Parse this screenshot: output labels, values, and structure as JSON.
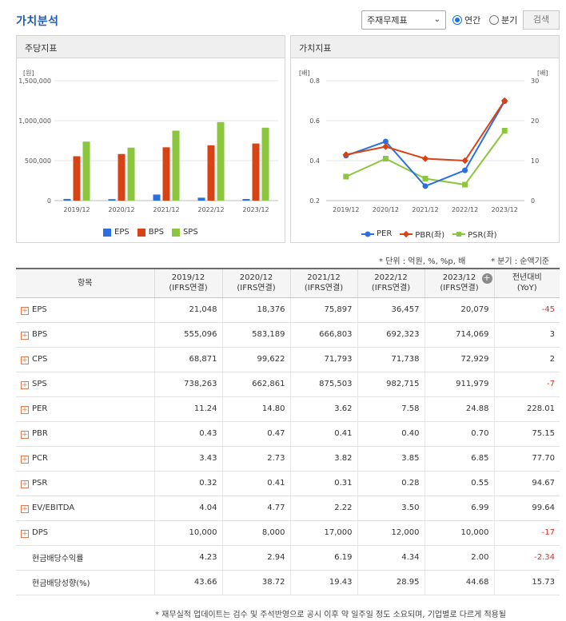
{
  "header": {
    "title": "가치분석",
    "select_value": "주재무제표",
    "radio_annual": "연간",
    "radio_quarter": "분기",
    "search_label": "검색"
  },
  "left_panel": {
    "title": "주당지표"
  },
  "right_panel": {
    "title": "가치지표"
  },
  "notes": {
    "unit": "* 단위 : 억원, %, %p, 배",
    "quarter": "* 분기 : 순액기준",
    "footer": "* 재무실적 업데이트는 검수 및 주석반영으로 공시 이후 약 일주일 정도 소요되며, 기업별로 다르게 적용될"
  },
  "colors": {
    "eps": "#2b6fe0",
    "bps": "#d84315",
    "sps": "#8cc63f",
    "per": "#2b6fe0",
    "pbr": "#d84315",
    "psr": "#8cc63f"
  },
  "chart_data": [
    {
      "type": "bar",
      "title": "주당지표",
      "ylabel": "[원]",
      "categories": [
        "2019/12",
        "2020/12",
        "2021/12",
        "2022/12",
        "2023/12"
      ],
      "yticks": [
        "1,500,000",
        "1,000,000",
        "500,000",
        "0"
      ],
      "ylim": [
        0,
        1500000
      ],
      "series": [
        {
          "name": "EPS",
          "values": [
            21048,
            18376,
            75897,
            36457,
            20079
          ]
        },
        {
          "name": "BPS",
          "values": [
            555096,
            583189,
            666803,
            692323,
            714069
          ]
        },
        {
          "name": "SPS",
          "values": [
            738263,
            662861,
            875503,
            982715,
            911979
          ]
        }
      ],
      "legend_position": "bottom"
    },
    {
      "type": "line",
      "title": "가치지표",
      "ylabel_left": "[배]",
      "ylabel_right": "[배]",
      "categories": [
        "2019/12",
        "2020/12",
        "2021/12",
        "2022/12",
        "2023/12"
      ],
      "yticks_left": [
        "0.8",
        "0.6",
        "0.4",
        "0.2"
      ],
      "yticks_right": [
        "30",
        "20",
        "10",
        "0"
      ],
      "ylim_left": [
        0.2,
        0.8
      ],
      "ylim_right": [
        0,
        30
      ],
      "series": [
        {
          "name": "PER",
          "axis": "right",
          "values": [
            11.24,
            14.8,
            3.62,
            7.58,
            24.88
          ]
        },
        {
          "name": "PBR(좌)",
          "axis": "left",
          "values": [
            0.43,
            0.47,
            0.41,
            0.4,
            0.7
          ]
        },
        {
          "name": "PSR(좌)",
          "axis": "left",
          "values": [
            0.32,
            0.41,
            0.31,
            0.28,
            0.55
          ]
        }
      ],
      "legend_position": "bottom"
    }
  ],
  "table": {
    "header_item": "항목",
    "columns": [
      {
        "line1": "2019/12",
        "line2": "(IFRS연결)"
      },
      {
        "line1": "2020/12",
        "line2": "(IFRS연결)"
      },
      {
        "line1": "2021/12",
        "line2": "(IFRS연결)"
      },
      {
        "line1": "2022/12",
        "line2": "(IFRS연결)"
      },
      {
        "line1": "2023/12",
        "line2": "(IFRS연결)"
      },
      {
        "line1": "전년대비",
        "line2": "(YoY)"
      }
    ],
    "rows": [
      {
        "label": "EPS",
        "values": [
          "21,048",
          "18,376",
          "75,897",
          "36,457",
          "20,079",
          "-45"
        ]
      },
      {
        "label": "BPS",
        "values": [
          "555,096",
          "583,189",
          "666,803",
          "692,323",
          "714,069",
          "3"
        ]
      },
      {
        "label": "CPS",
        "values": [
          "68,871",
          "99,622",
          "71,793",
          "71,738",
          "72,929",
          "2"
        ]
      },
      {
        "label": "SPS",
        "values": [
          "738,263",
          "662,861",
          "875,503",
          "982,715",
          "911,979",
          "-7"
        ]
      },
      {
        "label": "PER",
        "values": [
          "11.24",
          "14.80",
          "3.62",
          "7.58",
          "24.88",
          "228.01"
        ]
      },
      {
        "label": "PBR",
        "values": [
          "0.43",
          "0.47",
          "0.41",
          "0.40",
          "0.70",
          "75.15"
        ]
      },
      {
        "label": "PCR",
        "values": [
          "3.43",
          "2.73",
          "3.82",
          "3.85",
          "6.85",
          "77.70"
        ]
      },
      {
        "label": "PSR",
        "values": [
          "0.32",
          "0.41",
          "0.31",
          "0.28",
          "0.55",
          "94.67"
        ]
      },
      {
        "label": "EV/EBITDA",
        "values": [
          "4.04",
          "4.77",
          "2.22",
          "3.50",
          "6.99",
          "99.64"
        ]
      },
      {
        "label": "DPS",
        "values": [
          "10,000",
          "8,000",
          "17,000",
          "12,000",
          "10,000",
          "-17"
        ]
      },
      {
        "label": "현금배당수익률",
        "values": [
          "4.23",
          "2.94",
          "6.19",
          "4.34",
          "2.00",
          "-2.34"
        ]
      },
      {
        "label": "현금배당성향(%)",
        "values": [
          "43.66",
          "38.72",
          "19.43",
          "28.95",
          "44.68",
          "15.73"
        ]
      }
    ]
  }
}
